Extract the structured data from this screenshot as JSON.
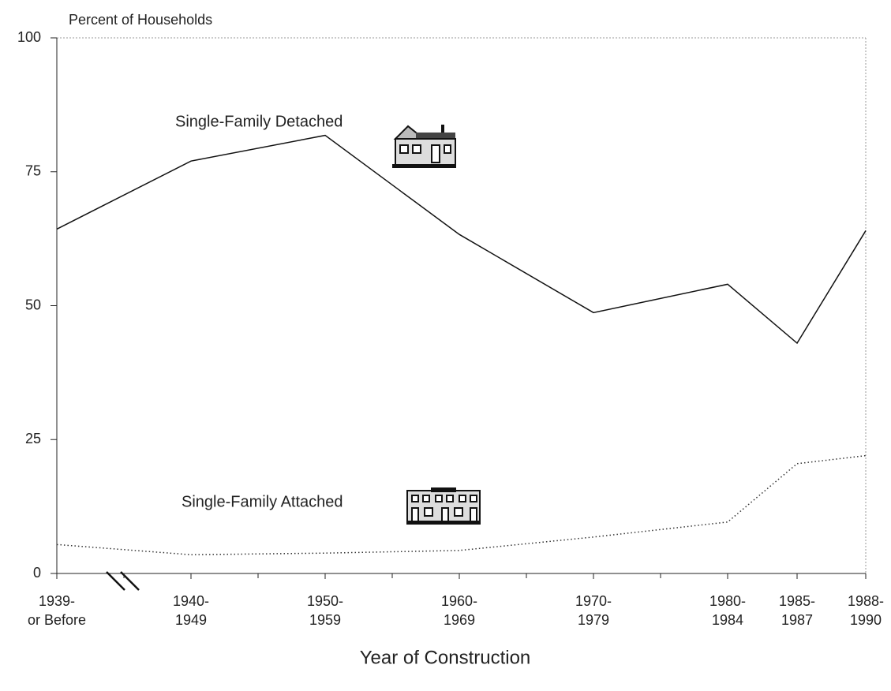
{
  "chart_data": {
    "type": "line",
    "y_axis_label": "Percent of Households",
    "x_axis_label": "Year of Construction",
    "categories": [
      "1939-\nor Before",
      "1940-\n1949",
      "1950-\n1959",
      "1960-\n1969",
      "1970-\n1979",
      "1980-\n1984",
      "1985-\n1987",
      "1988-\n1990"
    ],
    "series": [
      {
        "name": "Single-Family Detached",
        "color": "#111111",
        "line_style": "solid",
        "values": [
          64.3,
          77,
          81.8,
          63.3,
          48.7,
          54,
          43,
          64
        ]
      },
      {
        "name": "Single-Family Attached",
        "color": "#333333",
        "line_style": "dotted",
        "values": [
          5.4,
          3.5,
          3.8,
          4.3,
          6.8,
          9.6,
          20.5,
          22
        ]
      }
    ],
    "ylim": [
      0,
      100
    ],
    "yticks": [
      0,
      25,
      50,
      75,
      100
    ]
  }
}
